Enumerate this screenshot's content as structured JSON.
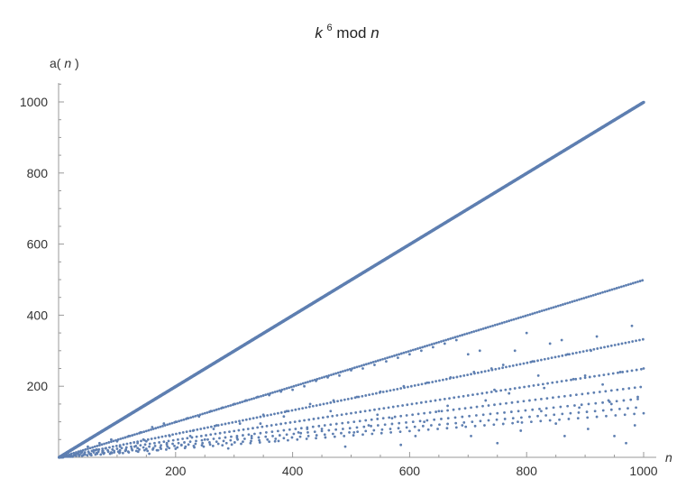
{
  "chart_data": {
    "type": "scatter",
    "title": {
      "base": "k",
      "superscript": "6",
      "rest": " mod ",
      "var": "n"
    },
    "xlabel": "n",
    "ylabel": {
      "prefix": "a(",
      "var": "n",
      "suffix": ")"
    },
    "xlim": [
      0,
      1000
    ],
    "ylim": [
      0,
      1000
    ],
    "xticks": [
      200,
      400,
      600,
      800,
      1000
    ],
    "yticks": [
      200,
      400,
      600,
      800,
      1000
    ],
    "grid": false,
    "marker_color": "#5e7fb1",
    "series": [
      {
        "x_start": 1,
        "x_end": 1000,
        "x_step": 1,
        "y_formula": "n - 1"
      },
      {
        "x_start": 2,
        "x_end": 1000,
        "x_step": 4,
        "y_formula": "n / 2 - 1"
      },
      {
        "x_start": 3,
        "x_end": 999,
        "x_step": 6,
        "y_formula": "n / 3 - 1"
      },
      {
        "x_start": 4,
        "x_end": 1000,
        "x_step": 8,
        "y_formula": "n / 4 - 1"
      },
      {
        "x_start": 5,
        "x_end": 1000,
        "x_step": 10,
        "y_formula": "n / 5 - 1"
      },
      {
        "x_start": 6,
        "x_end": 1000,
        "x_step": 12,
        "y_formula": "n / 6 - 1"
      },
      {
        "x_start": 7,
        "x_end": 1000,
        "x_step": 14,
        "y_formula": "n / 7 - 1"
      },
      {
        "x_start": 8,
        "x_end": 1000,
        "x_step": 16,
        "y_formula": "n / 8 - 1"
      }
    ],
    "scattered_points": [
      [
        20,
        5
      ],
      [
        30,
        10
      ],
      [
        40,
        15
      ],
      [
        50,
        30
      ],
      [
        60,
        20
      ],
      [
        70,
        40
      ],
      [
        80,
        25
      ],
      [
        90,
        50
      ],
      [
        100,
        45
      ],
      [
        110,
        12
      ],
      [
        120,
        60
      ],
      [
        130,
        30
      ],
      [
        140,
        70
      ],
      [
        150,
        45
      ],
      [
        160,
        85
      ],
      [
        170,
        20
      ],
      [
        180,
        95
      ],
      [
        190,
        60
      ],
      [
        200,
        100
      ],
      [
        210,
        35
      ],
      [
        220,
        110
      ],
      [
        230,
        75
      ],
      [
        240,
        115
      ],
      [
        250,
        50
      ],
      [
        260,
        130
      ],
      [
        270,
        90
      ],
      [
        280,
        140
      ],
      [
        290,
        25
      ],
      [
        300,
        150
      ],
      [
        310,
        95
      ],
      [
        320,
        160
      ],
      [
        330,
        60
      ],
      [
        340,
        170
      ],
      [
        350,
        120
      ],
      [
        360,
        175
      ],
      [
        370,
        45
      ],
      [
        380,
        185
      ],
      [
        390,
        130
      ],
      [
        400,
        190
      ],
      [
        410,
        70
      ],
      [
        420,
        200
      ],
      [
        430,
        150
      ],
      [
        440,
        215
      ],
      [
        450,
        80
      ],
      [
        460,
        225
      ],
      [
        470,
        160
      ],
      [
        480,
        230
      ],
      [
        490,
        30
      ],
      [
        500,
        245
      ],
      [
        510,
        170
      ],
      [
        520,
        250
      ],
      [
        530,
        90
      ],
      [
        540,
        260
      ],
      [
        550,
        185
      ],
      [
        560,
        270
      ],
      [
        570,
        110
      ],
      [
        580,
        280
      ],
      [
        590,
        200
      ],
      [
        600,
        290
      ],
      [
        610,
        60
      ],
      [
        620,
        300
      ],
      [
        630,
        210
      ],
      [
        640,
        310
      ],
      [
        650,
        130
      ],
      [
        660,
        320
      ],
      [
        670,
        225
      ],
      [
        680,
        330
      ],
      [
        690,
        90
      ],
      [
        700,
        290
      ],
      [
        710,
        240
      ],
      [
        720,
        300
      ],
      [
        730,
        160
      ],
      [
        740,
        250
      ],
      [
        750,
        40
      ],
      [
        760,
        260
      ],
      [
        770,
        180
      ],
      [
        780,
        300
      ],
      [
        790,
        75
      ],
      [
        800,
        350
      ],
      [
        810,
        270
      ],
      [
        820,
        230
      ],
      [
        830,
        195
      ],
      [
        840,
        320
      ],
      [
        850,
        95
      ],
      [
        860,
        330
      ],
      [
        870,
        290
      ],
      [
        880,
        220
      ],
      [
        890,
        140
      ],
      [
        900,
        230
      ],
      [
        910,
        300
      ],
      [
        920,
        340
      ],
      [
        930,
        205
      ],
      [
        940,
        160
      ],
      [
        950,
        60
      ],
      [
        960,
        240
      ],
      [
        970,
        40
      ],
      [
        980,
        370
      ],
      [
        990,
        170
      ],
      [
        1000,
        250
      ],
      [
        985,
        90
      ],
      [
        945,
        150
      ],
      [
        905,
        80
      ],
      [
        865,
        60
      ],
      [
        825,
        130
      ],
      [
        785,
        100
      ],
      [
        745,
        190
      ],
      [
        705,
        60
      ],
      [
        665,
        145
      ],
      [
        625,
        100
      ],
      [
        585,
        35
      ],
      [
        545,
        120
      ],
      [
        505,
        70
      ],
      [
        465,
        130
      ],
      [
        425,
        80
      ],
      [
        385,
        115
      ],
      [
        345,
        95
      ],
      [
        305,
        55
      ],
      [
        265,
        80
      ],
      [
        225,
        60
      ],
      [
        185,
        40
      ],
      [
        145,
        50
      ],
      [
        105,
        30
      ],
      [
        65,
        22
      ],
      [
        35,
        15
      ],
      [
        55,
        8
      ],
      [
        75,
        18
      ],
      [
        95,
        14
      ],
      [
        115,
        20
      ],
      [
        135,
        40
      ],
      [
        155,
        10
      ]
    ]
  }
}
